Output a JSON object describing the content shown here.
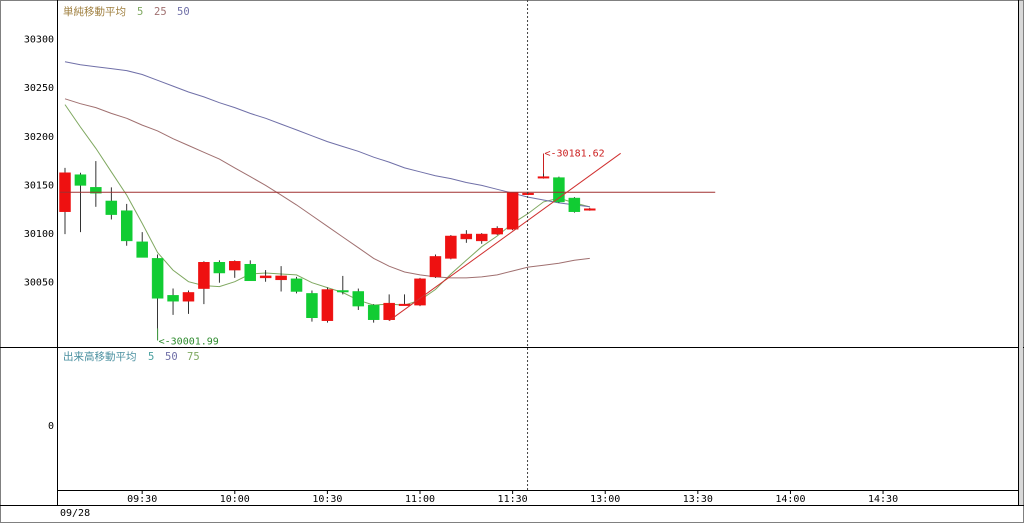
{
  "chart_data": [
    {
      "type": "candlestick",
      "panel": "price",
      "legend": {
        "label": "単純移動平均",
        "periods": [
          "5",
          "25",
          "50"
        ]
      },
      "yticks": [
        30050,
        30100,
        30150,
        30200,
        30250,
        30300
      ],
      "ylim": [
        29985,
        30320
      ],
      "x": [
        "09:05",
        "09:10",
        "09:15",
        "09:20",
        "09:25",
        "09:30",
        "09:35",
        "09:40",
        "09:45",
        "09:50",
        "09:55",
        "10:00",
        "10:05",
        "10:10",
        "10:15",
        "10:20",
        "10:25",
        "10:30",
        "10:35",
        "10:40",
        "10:45",
        "10:50",
        "10:55",
        "11:00",
        "11:05",
        "11:10",
        "11:15",
        "11:20",
        "11:25",
        "11:30",
        "11:35",
        "11:40",
        "11:45",
        "11:50",
        "11:55",
        "12:00",
        "12:05",
        "12:10",
        "12:15",
        "12:20",
        "12:25",
        "12:30",
        "12:35",
        "12:40",
        "12:45",
        "12:50",
        "12:55",
        "13:00",
        "13:05",
        "13:10",
        "13:15",
        "13:20",
        "13:25",
        "13:30",
        "13:35",
        "13:40",
        "13:45",
        "13:50",
        "13:55",
        "14:00",
        "14:05",
        "14:10",
        "14:15",
        "14:20",
        "14:25",
        "14:30",
        "14:35",
        "14:40",
        "14:45",
        "14:50",
        "14:55",
        "15:00"
      ],
      "candles": [
        {
          "x": "09:05",
          "o": 30122,
          "h": 30167,
          "l": 30099,
          "c": 30162
        },
        {
          "x": "09:10",
          "o": 30160,
          "h": 30162,
          "l": 30101,
          "c": 30149
        },
        {
          "x": "09:15",
          "o": 30147,
          "h": 30174,
          "l": 30127,
          "c": 30141
        },
        {
          "x": "09:20",
          "o": 30133,
          "h": 30147,
          "l": 30114,
          "c": 30119
        },
        {
          "x": "09:25",
          "o": 30123,
          "h": 30130,
          "l": 30087,
          "c": 30092
        },
        {
          "x": "09:30",
          "o": 30091,
          "h": 30101,
          "l": 30077,
          "c": 30075
        },
        {
          "x": "09:35",
          "o": 30074,
          "h": 30078,
          "l": 30001.99,
          "c": 30033
        },
        {
          "x": "09:40",
          "o": 30036,
          "h": 30043,
          "l": 30016,
          "c": 30030
        },
        {
          "x": "09:45",
          "o": 30030,
          "h": 30041,
          "l": 30017,
          "c": 30039
        },
        {
          "x": "09:50",
          "o": 30043,
          "h": 30071,
          "l": 30027,
          "c": 30070
        },
        {
          "x": "09:55",
          "o": 30070,
          "h": 30072,
          "l": 30049,
          "c": 30059
        },
        {
          "x": "10:00",
          "o": 30062,
          "h": 30072,
          "l": 30054,
          "c": 30071
        },
        {
          "x": "10:05",
          "o": 30068,
          "h": 30072,
          "l": 30051,
          "c": 30051
        },
        {
          "x": "10:10",
          "o": 30054,
          "h": 30062,
          "l": 30050,
          "c": 30056
        },
        {
          "x": "10:15",
          "o": 30052,
          "h": 30066,
          "l": 30040,
          "c": 30056
        },
        {
          "x": "10:20",
          "o": 30053,
          "h": 30055,
          "l": 30038,
          "c": 30040
        },
        {
          "x": "10:25",
          "o": 30038,
          "h": 30041,
          "l": 30009,
          "c": 30013
        },
        {
          "x": "10:30",
          "o": 30010,
          "h": 30044,
          "l": 30008,
          "c": 30042
        },
        {
          "x": "10:35",
          "o": 30041,
          "h": 30056,
          "l": 30037,
          "c": 30040
        },
        {
          "x": "10:40",
          "o": 30040,
          "h": 30043,
          "l": 30021,
          "c": 30025
        },
        {
          "x": "10:45",
          "o": 30026,
          "h": 30027,
          "l": 30008,
          "c": 30011
        },
        {
          "x": "10:50",
          "o": 30011,
          "h": 30037,
          "l": 30010,
          "c": 30028
        },
        {
          "x": "10:55",
          "o": 30027,
          "h": 30037,
          "l": 30026,
          "c": 30027
        },
        {
          "x": "11:00",
          "o": 30026,
          "h": 30054,
          "l": 30025,
          "c": 30053
        },
        {
          "x": "11:05",
          "o": 30055,
          "h": 30078,
          "l": 30054,
          "c": 30076
        },
        {
          "x": "11:10",
          "o": 30074,
          "h": 30098,
          "l": 30073,
          "c": 30097
        },
        {
          "x": "11:15",
          "o": 30094,
          "h": 30103,
          "l": 30090,
          "c": 30099
        },
        {
          "x": "11:20",
          "o": 30092,
          "h": 30100,
          "l": 30089,
          "c": 30099
        },
        {
          "x": "11:25",
          "o": 30099,
          "h": 30107,
          "l": 30098,
          "c": 30105
        },
        {
          "x": "11:30",
          "o": 30104,
          "h": 30142,
          "l": 30103,
          "c": 30142
        },
        {
          "x": "11:35",
          "o": 30141,
          "h": 30142,
          "l": 30139,
          "c": 30141
        },
        {
          "x": "11:40",
          "o": 30157,
          "h": 30181.62,
          "l": 30156,
          "c": 30158
        },
        {
          "x": "11:45",
          "o": 30157,
          "h": 30158,
          "l": 30131,
          "c": 30132
        },
        {
          "x": "11:50",
          "o": 30136,
          "h": 30137,
          "l": 30121,
          "c": 30122
        },
        {
          "x": "11:55",
          "o": 30124,
          "h": 30126,
          "l": 30123,
          "c": 30125
        }
      ],
      "sma": [
        {
          "period": "5",
          "color": "#7fa860",
          "points": [
            {
              "x": "09:05",
              "y": 30232
            },
            {
              "x": "09:10",
              "y": 30209
            },
            {
              "x": "09:15",
              "y": 30187
            },
            {
              "x": "09:20",
              "y": 30163
            },
            {
              "x": "09:25",
              "y": 30139
            },
            {
              "x": "09:30",
              "y": 30110
            },
            {
              "x": "09:35",
              "y": 30080
            },
            {
              "x": "09:40",
              "y": 30062
            },
            {
              "x": "09:45",
              "y": 30050
            },
            {
              "x": "09:50",
              "y": 30046
            },
            {
              "x": "09:55",
              "y": 30045
            },
            {
              "x": "10:00",
              "y": 30050
            },
            {
              "x": "10:05",
              "y": 30058
            },
            {
              "x": "10:10",
              "y": 30059
            },
            {
              "x": "10:15",
              "y": 30058
            },
            {
              "x": "10:20",
              "y": 30057
            },
            {
              "x": "10:25",
              "y": 30049
            },
            {
              "x": "10:30",
              "y": 30044
            },
            {
              "x": "10:35",
              "y": 30039
            },
            {
              "x": "10:40",
              "y": 30031
            },
            {
              "x": "10:45",
              "y": 30026
            },
            {
              "x": "10:50",
              "y": 30027
            },
            {
              "x": "10:55",
              "y": 30026
            },
            {
              "x": "11:00",
              "y": 30031
            },
            {
              "x": "11:05",
              "y": 30042
            },
            {
              "x": "11:10",
              "y": 30058
            },
            {
              "x": "11:15",
              "y": 30072
            },
            {
              "x": "11:20",
              "y": 30086
            },
            {
              "x": "11:25",
              "y": 30097
            },
            {
              "x": "11:30",
              "y": 30110
            },
            {
              "x": "11:35",
              "y": 30120
            },
            {
              "x": "11:40",
              "y": 30132
            },
            {
              "x": "11:45",
              "y": 30136
            },
            {
              "x": "11:50",
              "y": 30131
            },
            {
              "x": "11:55",
              "y": 30127
            }
          ]
        },
        {
          "period": "25",
          "color": "#a07070",
          "points": [
            {
              "x": "09:05",
              "y": 30238
            },
            {
              "x": "09:10",
              "y": 30233
            },
            {
              "x": "09:15",
              "y": 30229
            },
            {
              "x": "09:20",
              "y": 30223
            },
            {
              "x": "09:25",
              "y": 30218
            },
            {
              "x": "09:30",
              "y": 30211
            },
            {
              "x": "09:35",
              "y": 30205
            },
            {
              "x": "09:40",
              "y": 30197
            },
            {
              "x": "09:45",
              "y": 30190
            },
            {
              "x": "09:50",
              "y": 30183
            },
            {
              "x": "09:55",
              "y": 30176
            },
            {
              "x": "10:00",
              "y": 30167
            },
            {
              "x": "10:05",
              "y": 30158
            },
            {
              "x": "10:10",
              "y": 30149
            },
            {
              "x": "10:15",
              "y": 30139
            },
            {
              "x": "10:20",
              "y": 30129
            },
            {
              "x": "10:25",
              "y": 30118
            },
            {
              "x": "10:30",
              "y": 30107
            },
            {
              "x": "10:35",
              "y": 30096
            },
            {
              "x": "10:40",
              "y": 30085
            },
            {
              "x": "10:45",
              "y": 30074
            },
            {
              "x": "10:50",
              "y": 30066
            },
            {
              "x": "10:55",
              "y": 30060
            },
            {
              "x": "11:00",
              "y": 30057
            },
            {
              "x": "11:05",
              "y": 30055
            },
            {
              "x": "11:10",
              "y": 30054
            },
            {
              "x": "11:15",
              "y": 30054
            },
            {
              "x": "11:20",
              "y": 30055
            },
            {
              "x": "11:25",
              "y": 30057
            },
            {
              "x": "11:30",
              "y": 30061
            },
            {
              "x": "11:35",
              "y": 30065
            },
            {
              "x": "11:40",
              "y": 30067
            },
            {
              "x": "11:45",
              "y": 30069
            },
            {
              "x": "11:50",
              "y": 30072
            },
            {
              "x": "11:55",
              "y": 30074
            }
          ]
        },
        {
          "period": "50",
          "color": "#7070a8",
          "points": [
            {
              "x": "09:05",
              "y": 30276
            },
            {
              "x": "09:10",
              "y": 30273
            },
            {
              "x": "09:15",
              "y": 30271
            },
            {
              "x": "09:20",
              "y": 30269
            },
            {
              "x": "09:25",
              "y": 30267
            },
            {
              "x": "09:30",
              "y": 30263
            },
            {
              "x": "09:35",
              "y": 30257
            },
            {
              "x": "09:40",
              "y": 30251
            },
            {
              "x": "09:45",
              "y": 30245
            },
            {
              "x": "09:50",
              "y": 30240
            },
            {
              "x": "09:55",
              "y": 30234
            },
            {
              "x": "10:00",
              "y": 30229
            },
            {
              "x": "10:05",
              "y": 30223
            },
            {
              "x": "10:10",
              "y": 30218
            },
            {
              "x": "10:15",
              "y": 30212
            },
            {
              "x": "10:20",
              "y": 30206
            },
            {
              "x": "10:25",
              "y": 30200
            },
            {
              "x": "10:30",
              "y": 30194
            },
            {
              "x": "10:35",
              "y": 30189
            },
            {
              "x": "10:40",
              "y": 30184
            },
            {
              "x": "10:45",
              "y": 30178
            },
            {
              "x": "10:50",
              "y": 30173
            },
            {
              "x": "10:55",
              "y": 30167
            },
            {
              "x": "11:00",
              "y": 30163
            },
            {
              "x": "11:05",
              "y": 30159
            },
            {
              "x": "11:10",
              "y": 30156
            },
            {
              "x": "11:15",
              "y": 30152
            },
            {
              "x": "11:20",
              "y": 30149
            },
            {
              "x": "11:25",
              "y": 30145
            },
            {
              "x": "11:30",
              "y": 30141
            },
            {
              "x": "11:35",
              "y": 30137
            },
            {
              "x": "11:40",
              "y": 30134
            },
            {
              "x": "11:45",
              "y": 30131
            },
            {
              "x": "11:50",
              "y": 30129
            },
            {
              "x": "11:55",
              "y": 30127
            }
          ]
        }
      ],
      "horizontal_line": {
        "y": 30142,
        "from": "09:05",
        "to": "13:00",
        "color": "#a03030"
      },
      "trend_line": {
        "from": {
          "x": "10:50",
          "y": 30010
        },
        "to": {
          "x": "12:05",
          "y": 30182
        },
        "color": "#d03030"
      },
      "annotations": [
        {
          "text": "<-30001.99",
          "x": "09:35",
          "y": 30001.99,
          "color": "#2e8b2e"
        },
        {
          "text": "<-30181.62",
          "x": "11:40",
          "y": 30181.62,
          "color": "#cc2020"
        }
      ],
      "crosshair_x": "11:35"
    },
    {
      "type": "line",
      "panel": "volume",
      "legend": {
        "label": "出来高移動平均",
        "periods": [
          "5",
          "50",
          "75"
        ]
      },
      "yticks": [
        0
      ]
    }
  ],
  "xticks": [
    "09:30",
    "10:00",
    "10:30",
    "11:00",
    "11:30",
    "13:00",
    "13:30",
    "14:00",
    "14:30"
  ],
  "date_label": "09/28",
  "colors": {
    "up": "#ee1111",
    "down": "#11cc33",
    "legend_text": "#a08040",
    "p5": "#7fa860",
    "p25": "#a07070",
    "p50": "#7070a8",
    "vol_text": "#4a90a0",
    "vol_p5": "#4aa0a0",
    "vol_p50": "#7070a8",
    "vol_p75": "#7fa860"
  }
}
